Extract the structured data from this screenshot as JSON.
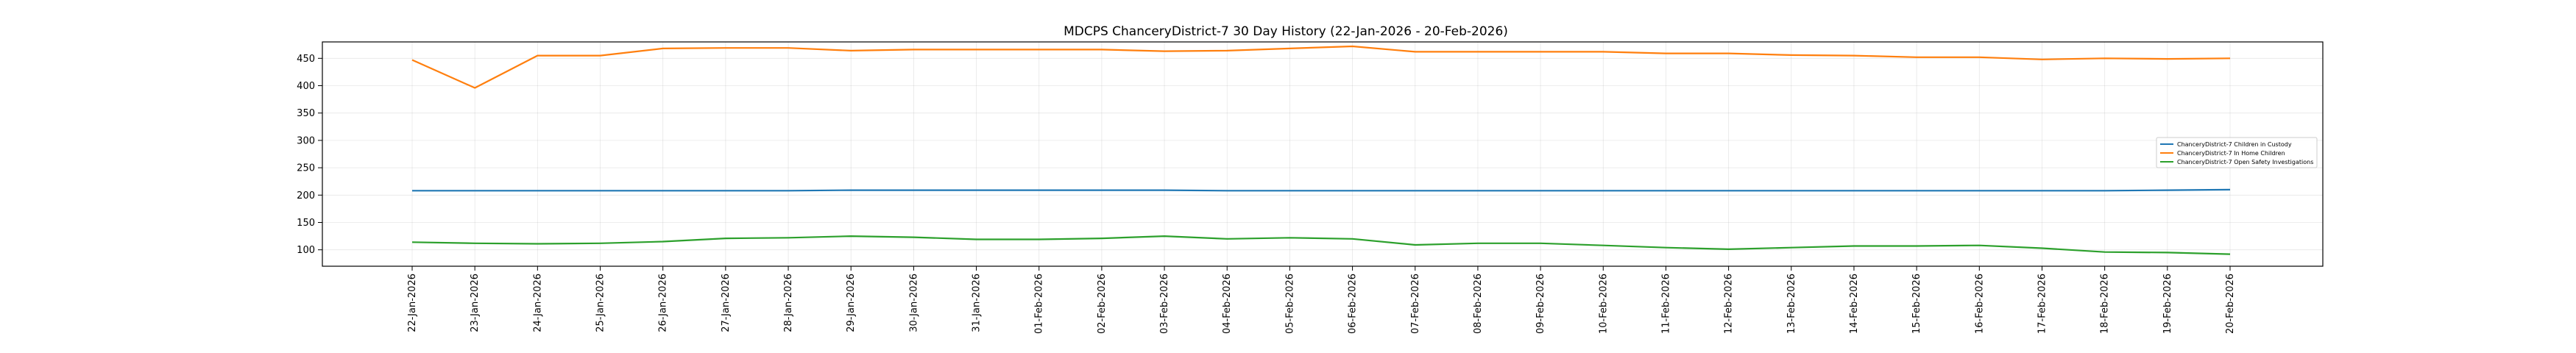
{
  "chart_data": {
    "type": "line",
    "title": "MDCPS ChanceryDistrict-7 30 Day History (22-Jan-2026 - 20-Feb-2026)",
    "xlabel": "",
    "ylabel": "",
    "categories": [
      "22-Jan-2026",
      "23-Jan-2026",
      "24-Jan-2026",
      "25-Jan-2026",
      "26-Jan-2026",
      "27-Jan-2026",
      "28-Jan-2026",
      "29-Jan-2026",
      "30-Jan-2026",
      "31-Jan-2026",
      "01-Feb-2026",
      "02-Feb-2026",
      "03-Feb-2026",
      "04-Feb-2026",
      "05-Feb-2026",
      "06-Feb-2026",
      "07-Feb-2026",
      "08-Feb-2026",
      "09-Feb-2026",
      "10-Feb-2026",
      "11-Feb-2026",
      "12-Feb-2026",
      "13-Feb-2026",
      "14-Feb-2026",
      "15-Feb-2026",
      "16-Feb-2026",
      "17-Feb-2026",
      "18-Feb-2026",
      "19-Feb-2026",
      "20-Feb-2026"
    ],
    "ylim": [
      70,
      480
    ],
    "yticks": [
      100,
      150,
      200,
      250,
      300,
      350,
      400,
      450
    ],
    "grid": true,
    "legend_position": "right",
    "series": [
      {
        "name": "ChanceryDistrict-7 Children in Custody",
        "color": "#1f77b4",
        "values": [
          208,
          208,
          208,
          208,
          208,
          208,
          208,
          209,
          209,
          209,
          209,
          209,
          209,
          208,
          208,
          208,
          208,
          208,
          208,
          208,
          208,
          208,
          208,
          208,
          208,
          208,
          208,
          208,
          209,
          210
        ]
      },
      {
        "name": "ChanceryDistrict-7 In Home Children",
        "color": "#ff7f0e",
        "values": [
          447,
          396,
          455,
          455,
          468,
          469,
          469,
          464,
          466,
          466,
          466,
          466,
          463,
          464,
          468,
          472,
          462,
          462,
          462,
          462,
          459,
          459,
          456,
          455,
          452,
          452,
          448,
          450,
          449,
          450
        ]
      },
      {
        "name": "ChanceryDistrict-7 Open Safety Investigations",
        "color": "#2ca02c",
        "values": [
          114,
          112,
          111,
          112,
          115,
          121,
          122,
          125,
          123,
          119,
          119,
          121,
          125,
          120,
          122,
          120,
          109,
          112,
          112,
          108,
          104,
          101,
          104,
          107,
          107,
          108,
          103,
          96,
          95,
          92
        ]
      }
    ]
  }
}
